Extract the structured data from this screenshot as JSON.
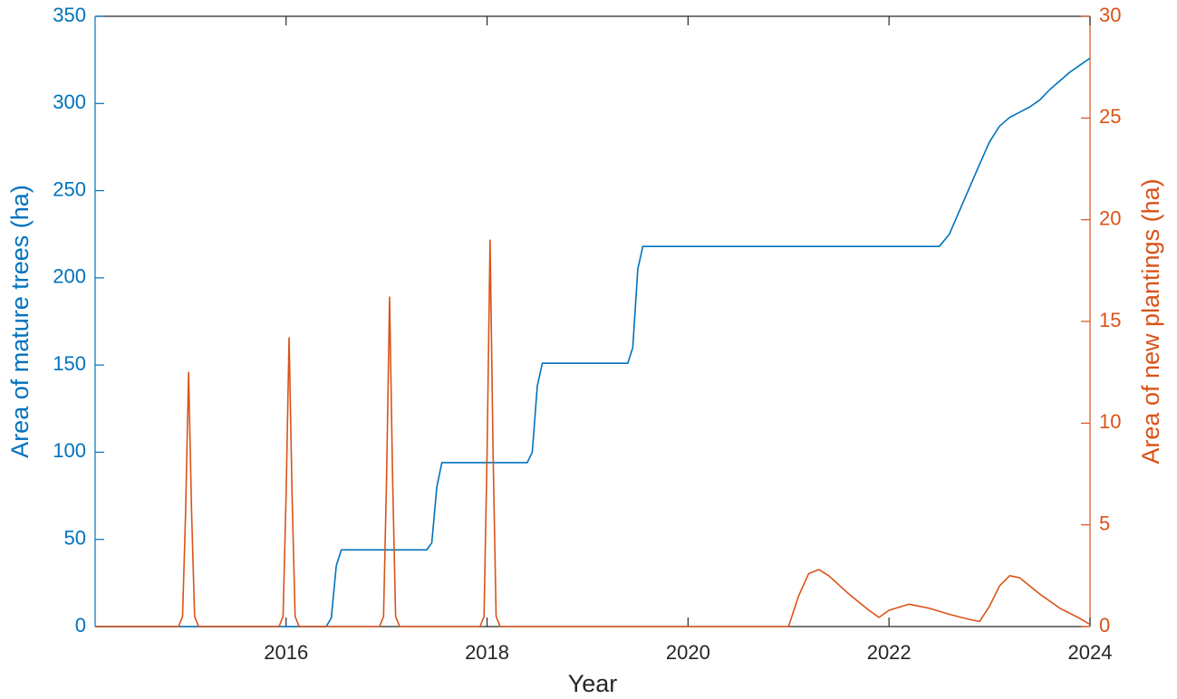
{
  "chart_data": {
    "type": "line",
    "xlabel": "Year",
    "ylabel": "Area of mature trees (ha)",
    "y2label": "Area of new plantings (ha)",
    "xlim": [
      2014.1,
      2024
    ],
    "xticks": [
      2016,
      2018,
      2020,
      2022,
      2024
    ],
    "ylim": [
      0,
      350
    ],
    "yticks": [
      0,
      50,
      100,
      150,
      200,
      250,
      300,
      350
    ],
    "y2lim": [
      0,
      30
    ],
    "y2ticks": [
      0,
      5,
      10,
      15,
      20,
      25,
      30
    ],
    "grid": false,
    "series": [
      {
        "color": "#0072bd",
        "x": [
          2014.1,
          2016.4,
          2016.45,
          2016.5,
          2016.55,
          2016.6,
          2017.4,
          2017.45,
          2017.5,
          2017.55,
          2017.6,
          2018.4,
          2018.45,
          2018.5,
          2018.55,
          2018.6,
          2019.4,
          2019.45,
          2019.5,
          2019.55,
          2019.6,
          2022.5,
          2022.6,
          2022.75,
          2022.9,
          2023.0,
          2023.1,
          2023.2,
          2023.3,
          2023.4,
          2023.5,
          2023.6,
          2023.7,
          2023.8,
          2023.9,
          2024.0
        ],
        "values": [
          0,
          0,
          5,
          35,
          44,
          44,
          44,
          48,
          80,
          94,
          94,
          94,
          100,
          138,
          151,
          151,
          151,
          160,
          205,
          218,
          218,
          218,
          225,
          245,
          265,
          278,
          287,
          292,
          295,
          298,
          302,
          308,
          313,
          318,
          322,
          326
        ]
      },
      {
        "color": "#d95319",
        "axis": "y2",
        "x": [
          2014.1,
          2014.93,
          2014.97,
          2015.0,
          2015.03,
          2015.06,
          2015.09,
          2015.13,
          2015.93,
          2015.97,
          2016.0,
          2016.03,
          2016.06,
          2016.09,
          2016.13,
          2016.93,
          2016.97,
          2017.0,
          2017.03,
          2017.06,
          2017.09,
          2017.13,
          2017.93,
          2017.97,
          2018.0,
          2018.03,
          2018.06,
          2018.09,
          2018.13,
          2021.0,
          2021.1,
          2021.2,
          2021.3,
          2021.4,
          2021.6,
          2021.8,
          2021.9,
          2022.0,
          2022.2,
          2022.4,
          2022.6,
          2022.8,
          2022.9,
          2023.0,
          2023.1,
          2023.2,
          2023.3,
          2023.5,
          2023.7,
          2023.9,
          2024.0
        ],
        "values": [
          0,
          0,
          0.5,
          5.6,
          12.5,
          5.6,
          0.5,
          0,
          0,
          0.5,
          6.4,
          14.2,
          6.4,
          0.5,
          0,
          0,
          0.5,
          7.3,
          16.2,
          7.3,
          0.5,
          0,
          0,
          0.5,
          8.5,
          19.0,
          8.5,
          0.5,
          0,
          0,
          1.5,
          2.6,
          2.8,
          2.5,
          1.6,
          0.8,
          0.45,
          0.8,
          1.1,
          0.9,
          0.6,
          0.35,
          0.25,
          1.0,
          2.0,
          2.5,
          2.4,
          1.6,
          0.9,
          0.4,
          0.1
        ]
      }
    ]
  }
}
